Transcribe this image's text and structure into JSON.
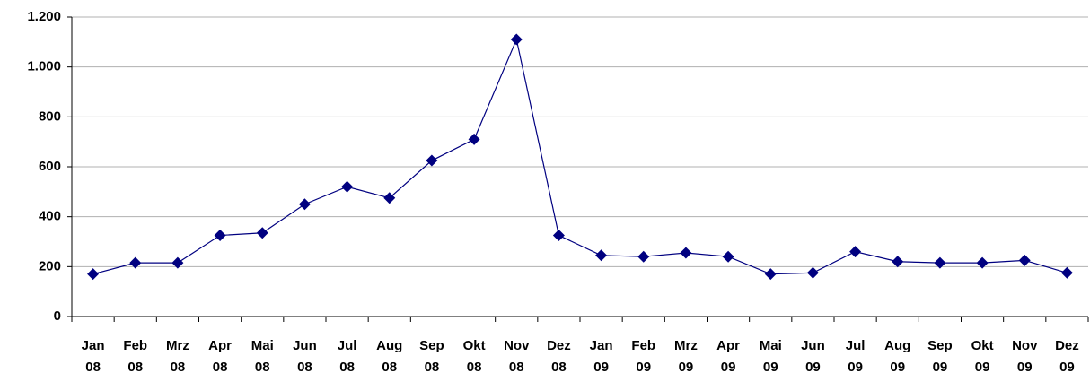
{
  "chart_data": {
    "type": "line",
    "categories": [
      "Jan 08",
      "Feb 08",
      "Mrz 08",
      "Apr 08",
      "Mai 08",
      "Jun 08",
      "Jul 08",
      "Aug 08",
      "Sep 08",
      "Okt 08",
      "Nov 08",
      "Dez 08",
      "Jan 09",
      "Feb 09",
      "Mrz 09",
      "Apr 09",
      "Mai 09",
      "Jun 09",
      "Jul 09",
      "Aug 09",
      "Sep 09",
      "Okt 09",
      "Nov 09",
      "Dez 09"
    ],
    "series": [
      {
        "color": "#000080",
        "values": [
          170,
          215,
          215,
          325,
          335,
          450,
          520,
          475,
          625,
          710,
          1110,
          325,
          245,
          240,
          255,
          240,
          170,
          175,
          260,
          220,
          215,
          215,
          225,
          175
        ]
      }
    ],
    "ylim": [
      0,
      1200
    ],
    "yticks": [
      0,
      200,
      400,
      600,
      800,
      {
        "value": 1000,
        "label": "1.000"
      },
      {
        "value": 1200,
        "label": "1.200"
      }
    ],
    "grid": true
  }
}
